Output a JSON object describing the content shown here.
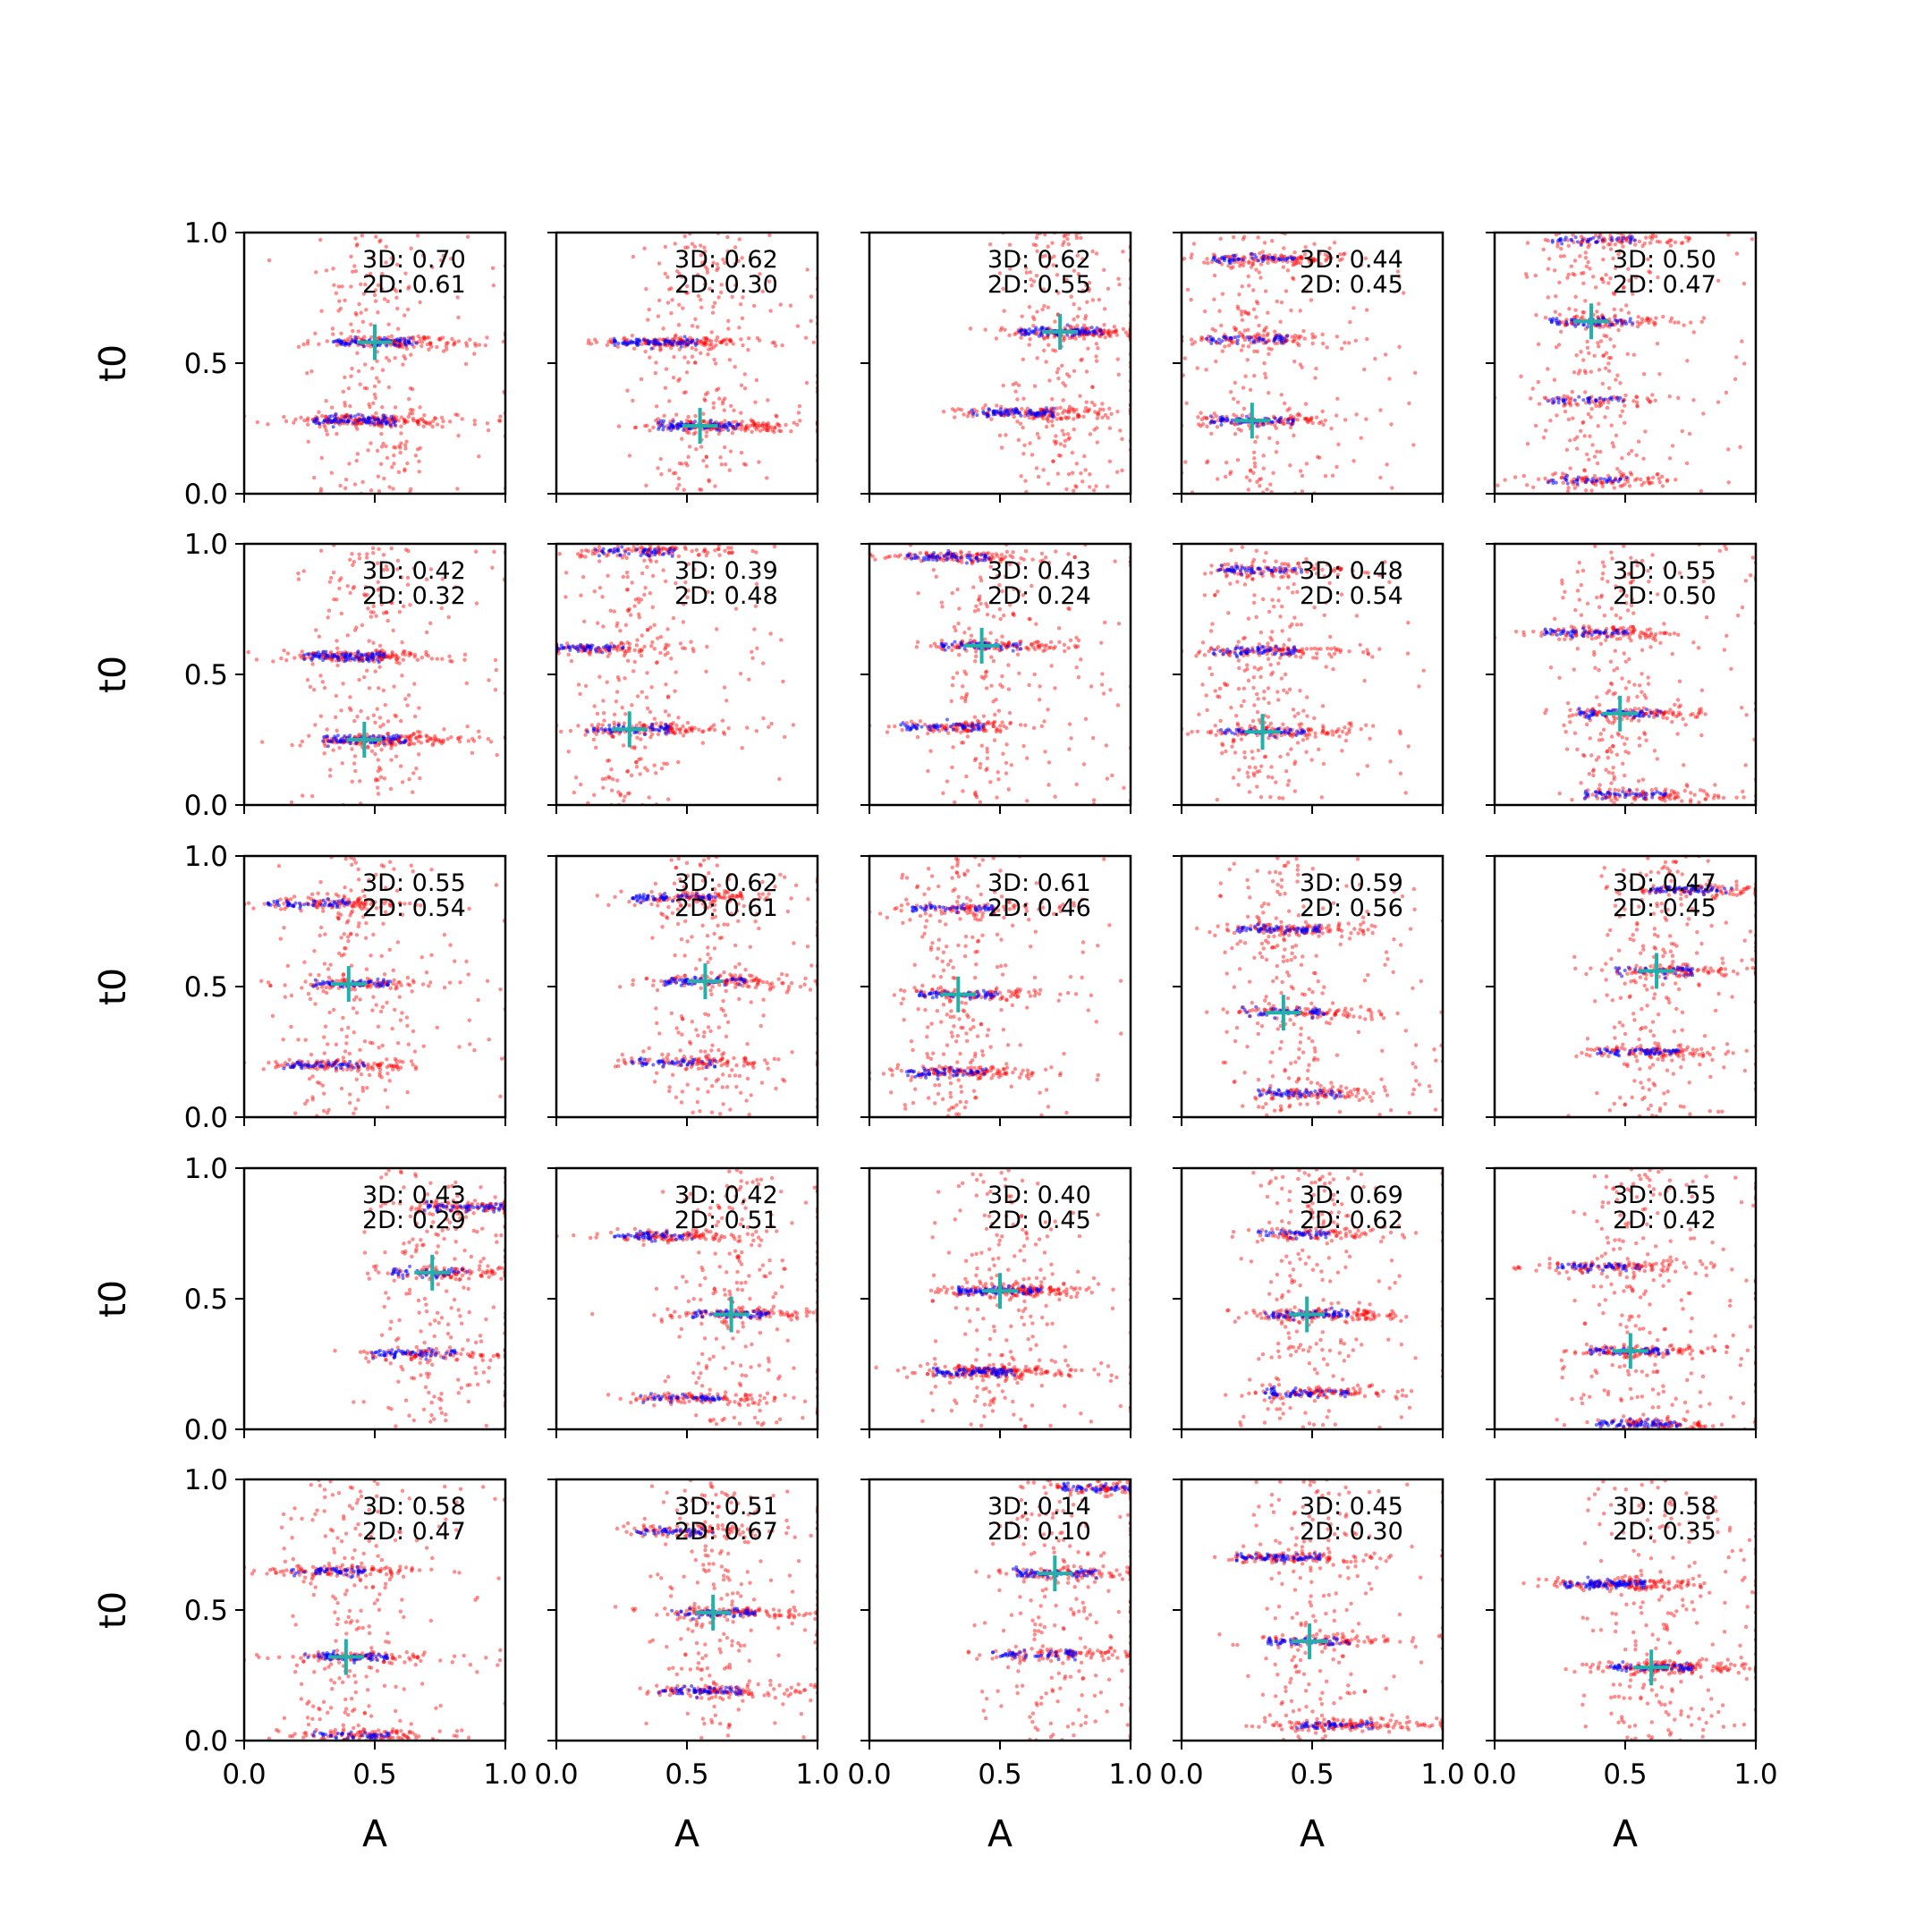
{
  "chart_data": {
    "type": "scatter",
    "grid": false,
    "xlim": [
      0,
      1
    ],
    "ylim": [
      0,
      1
    ],
    "xlabel": "A",
    "ylabel": "t0",
    "x_ticks": [
      "0.0",
      "0.5",
      "1.0"
    ],
    "y_ticks": [
      "0.0",
      "0.5",
      "1.0"
    ],
    "colors": {
      "series_3d": "#0000ff",
      "series_2d": "#ff0000",
      "truth": "#20b2aa"
    },
    "annotation_prefixes": {
      "three_d": "3D: ",
      "two_d": "2D: "
    },
    "panels": [
      {
        "label_3d": "0.70",
        "label_2d": "0.61",
        "truth": [
          0.5,
          0.58
        ],
        "modes": [
          [
            0.5,
            0.58
          ],
          [
            0.42,
            0.28
          ]
        ]
      },
      {
        "label_3d": "0.62",
        "label_2d": "0.30",
        "truth": [
          0.55,
          0.26
        ],
        "modes": [
          [
            0.55,
            0.26
          ],
          [
            0.38,
            0.58
          ]
        ]
      },
      {
        "label_3d": "0.62",
        "label_2d": "0.55",
        "truth": [
          0.73,
          0.62
        ],
        "modes": [
          [
            0.73,
            0.62
          ],
          [
            0.55,
            0.31
          ]
        ]
      },
      {
        "label_3d": "0.44",
        "label_2d": "0.45",
        "truth": [
          0.27,
          0.28
        ],
        "modes": [
          [
            0.27,
            0.28
          ],
          [
            0.25,
            0.59
          ],
          [
            0.28,
            0.9
          ]
        ]
      },
      {
        "label_3d": "0.50",
        "label_2d": "0.47",
        "truth": [
          0.37,
          0.66
        ],
        "modes": [
          [
            0.37,
            0.66
          ],
          [
            0.35,
            0.36
          ],
          [
            0.35,
            0.05
          ],
          [
            0.38,
            0.97
          ]
        ]
      },
      {
        "label_3d": "0.42",
        "label_2d": "0.32",
        "truth": [
          0.46,
          0.25
        ],
        "modes": [
          [
            0.46,
            0.25
          ],
          [
            0.38,
            0.57
          ]
        ]
      },
      {
        "label_3d": "0.39",
        "label_2d": "0.48",
        "truth": [
          0.28,
          0.29
        ],
        "modes": [
          [
            0.28,
            0.29
          ],
          [
            0.1,
            0.6
          ],
          [
            0.3,
            0.97
          ]
        ]
      },
      {
        "label_3d": "0.43",
        "label_2d": "0.24",
        "truth": [
          0.43,
          0.61
        ],
        "modes": [
          [
            0.43,
            0.61
          ],
          [
            0.28,
            0.3
          ],
          [
            0.3,
            0.95
          ]
        ]
      },
      {
        "label_3d": "0.48",
        "label_2d": "0.54",
        "truth": [
          0.31,
          0.28
        ],
        "modes": [
          [
            0.31,
            0.28
          ],
          [
            0.28,
            0.59
          ],
          [
            0.3,
            0.9
          ]
        ]
      },
      {
        "label_3d": "0.55",
        "label_2d": "0.50",
        "truth": [
          0.48,
          0.35
        ],
        "modes": [
          [
            0.48,
            0.35
          ],
          [
            0.35,
            0.66
          ],
          [
            0.5,
            0.04
          ]
        ]
      },
      {
        "label_3d": "0.55",
        "label_2d": "0.54",
        "truth": [
          0.4,
          0.51
        ],
        "modes": [
          [
            0.4,
            0.51
          ],
          [
            0.3,
            0.2
          ],
          [
            0.25,
            0.82
          ]
        ]
      },
      {
        "label_3d": "0.62",
        "label_2d": "0.61",
        "truth": [
          0.57,
          0.52
        ],
        "modes": [
          [
            0.57,
            0.52
          ],
          [
            0.45,
            0.21
          ],
          [
            0.45,
            0.84
          ]
        ]
      },
      {
        "label_3d": "0.61",
        "label_2d": "0.46",
        "truth": [
          0.34,
          0.47
        ],
        "modes": [
          [
            0.34,
            0.47
          ],
          [
            0.3,
            0.17
          ],
          [
            0.32,
            0.8
          ]
        ]
      },
      {
        "label_3d": "0.59",
        "label_2d": "0.56",
        "truth": [
          0.39,
          0.4
        ],
        "modes": [
          [
            0.39,
            0.4
          ],
          [
            0.45,
            0.09
          ],
          [
            0.37,
            0.72
          ]
        ]
      },
      {
        "label_3d": "0.47",
        "label_2d": "0.45",
        "truth": [
          0.62,
          0.56
        ],
        "modes": [
          [
            0.62,
            0.56
          ],
          [
            0.55,
            0.25
          ],
          [
            0.75,
            0.87
          ]
        ]
      },
      {
        "label_3d": "0.43",
        "label_2d": "0.29",
        "truth": [
          0.72,
          0.6
        ],
        "modes": [
          [
            0.72,
            0.6
          ],
          [
            0.65,
            0.29
          ],
          [
            0.85,
            0.85
          ]
        ]
      },
      {
        "label_3d": "0.42",
        "label_2d": "0.51",
        "truth": [
          0.67,
          0.44
        ],
        "modes": [
          [
            0.67,
            0.44
          ],
          [
            0.48,
            0.12
          ],
          [
            0.38,
            0.74
          ]
        ]
      },
      {
        "label_3d": "0.40",
        "label_2d": "0.45",
        "truth": [
          0.5,
          0.53
        ],
        "modes": [
          [
            0.5,
            0.53
          ],
          [
            0.4,
            0.22
          ]
        ]
      },
      {
        "label_3d": "0.69",
        "label_2d": "0.62",
        "truth": [
          0.48,
          0.44
        ],
        "modes": [
          [
            0.48,
            0.44
          ],
          [
            0.45,
            0.75
          ],
          [
            0.48,
            0.14
          ]
        ]
      },
      {
        "label_3d": "0.55",
        "label_2d": "0.42",
        "truth": [
          0.52,
          0.3
        ],
        "modes": [
          [
            0.52,
            0.3
          ],
          [
            0.4,
            0.62
          ],
          [
            0.55,
            0.02
          ]
        ]
      },
      {
        "label_3d": "0.58",
        "label_2d": "0.47",
        "truth": [
          0.39,
          0.32
        ],
        "modes": [
          [
            0.39,
            0.32
          ],
          [
            0.32,
            0.65
          ],
          [
            0.4,
            0.02
          ]
        ]
      },
      {
        "label_3d": "0.51",
        "label_2d": "0.67",
        "truth": [
          0.6,
          0.49
        ],
        "modes": [
          [
            0.6,
            0.49
          ],
          [
            0.45,
            0.8
          ],
          [
            0.55,
            0.19
          ]
        ]
      },
      {
        "label_3d": "0.14",
        "label_2d": "0.10",
        "truth": [
          0.71,
          0.64
        ],
        "modes": [
          [
            0.71,
            0.64
          ],
          [
            0.63,
            0.33
          ],
          [
            0.9,
            0.97
          ]
        ]
      },
      {
        "label_3d": "0.45",
        "label_2d": "0.30",
        "truth": [
          0.49,
          0.38
        ],
        "modes": [
          [
            0.49,
            0.38
          ],
          [
            0.37,
            0.7
          ],
          [
            0.6,
            0.06
          ]
        ]
      },
      {
        "label_3d": "0.58",
        "label_2d": "0.35",
        "truth": [
          0.6,
          0.28
        ],
        "modes": [
          [
            0.6,
            0.28
          ],
          [
            0.42,
            0.6
          ]
        ]
      }
    ]
  }
}
